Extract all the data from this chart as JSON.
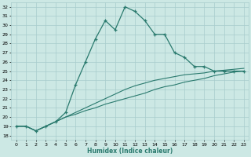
{
  "xlabel": "Humidex (Indice chaleur)",
  "bg_color": "#cce8e4",
  "grid_color": "#a8cccc",
  "line_color": "#2a7a6e",
  "xlim": [
    -0.5,
    23.5
  ],
  "ylim": [
    17.5,
    32.5
  ],
  "yticks": [
    18,
    19,
    20,
    21,
    22,
    23,
    24,
    25,
    26,
    27,
    28,
    29,
    30,
    31,
    32
  ],
  "xticks": [
    0,
    1,
    2,
    3,
    4,
    5,
    6,
    7,
    8,
    9,
    10,
    11,
    12,
    13,
    14,
    15,
    16,
    17,
    18,
    19,
    20,
    21,
    22,
    23
  ],
  "curve1_x": [
    0,
    1,
    2,
    3,
    4,
    5,
    6,
    7,
    8,
    9,
    10,
    11,
    12,
    13,
    14,
    15,
    16,
    17,
    18,
    19,
    20,
    21,
    22,
    23
  ],
  "curve1_y": [
    19.0,
    19.0,
    18.5,
    19.0,
    19.5,
    20.5,
    23.5,
    26.0,
    28.5,
    30.5,
    29.5,
    32.0,
    31.5,
    30.5,
    29.0,
    29.0,
    27.0,
    26.5,
    25.5,
    25.5,
    25.0,
    25.0,
    25.0,
    25.0
  ],
  "curve2_x": [
    0,
    1,
    2,
    3,
    4,
    5,
    6,
    7,
    8,
    9,
    10,
    11,
    12,
    13,
    14,
    15,
    16,
    17,
    18,
    19,
    20,
    21,
    22,
    23
  ],
  "curve2_y": [
    19.0,
    19.0,
    18.5,
    19.0,
    19.5,
    20.0,
    20.5,
    21.0,
    21.5,
    22.0,
    22.5,
    23.0,
    23.4,
    23.7,
    24.0,
    24.2,
    24.4,
    24.6,
    24.7,
    24.8,
    25.0,
    25.1,
    25.2,
    25.3
  ],
  "curve3_x": [
    0,
    1,
    2,
    3,
    4,
    5,
    6,
    7,
    8,
    9,
    10,
    11,
    12,
    13,
    14,
    15,
    16,
    17,
    18,
    19,
    20,
    21,
    22,
    23
  ],
  "curve3_y": [
    19.0,
    19.0,
    18.5,
    19.0,
    19.5,
    20.0,
    20.3,
    20.7,
    21.0,
    21.4,
    21.7,
    22.0,
    22.3,
    22.6,
    23.0,
    23.3,
    23.5,
    23.8,
    24.0,
    24.2,
    24.5,
    24.7,
    24.9,
    25.0
  ]
}
